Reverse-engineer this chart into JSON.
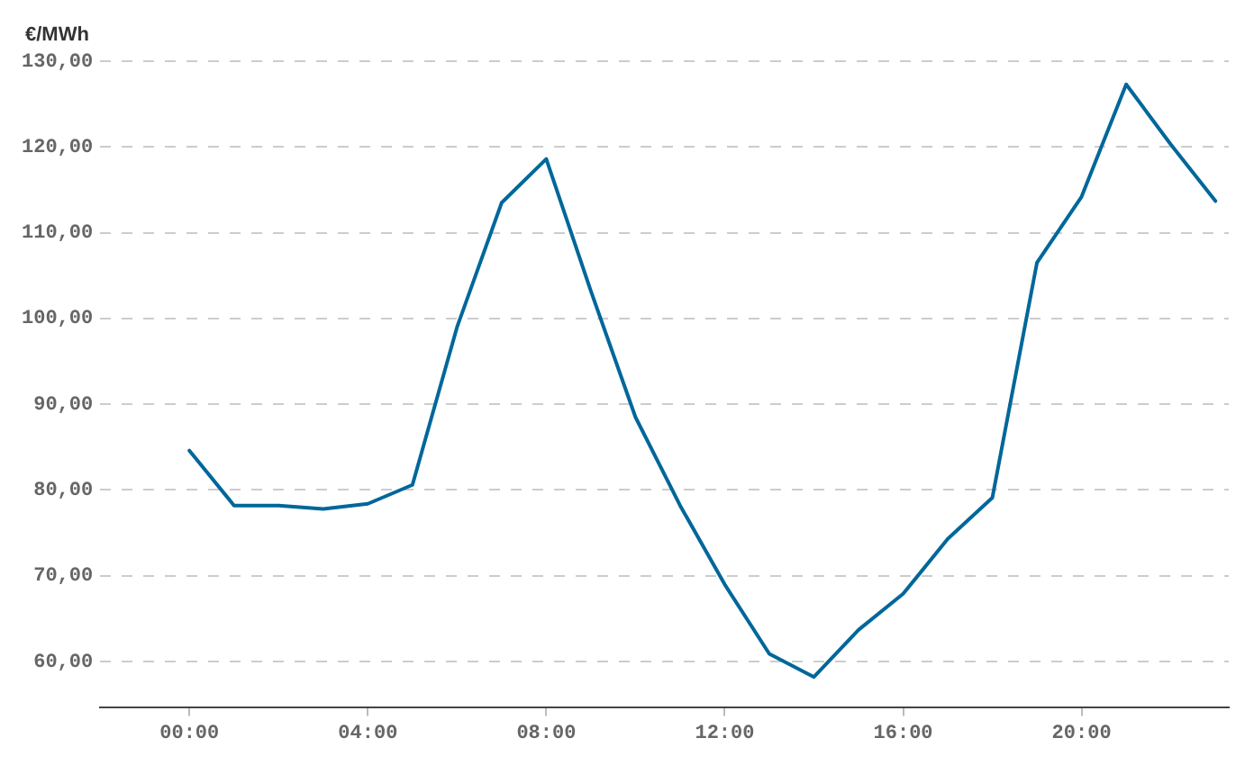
{
  "chart_data": {
    "type": "line",
    "ylabel": "€/MWh",
    "x": [
      0,
      1,
      2,
      3,
      4,
      5,
      6,
      7,
      8,
      9,
      10,
      11,
      12,
      13,
      14,
      15,
      16,
      17,
      18,
      19,
      20,
      21,
      22,
      23
    ],
    "series": [
      {
        "color": "#00679a",
        "values": [
          84.6,
          78.2,
          78.2,
          77.8,
          78.4,
          80.6,
          99.0,
          113.5,
          118.6,
          103.2,
          88.5,
          78.2,
          69.0,
          60.9,
          58.2,
          63.7,
          67.9,
          74.3,
          79.1,
          106.5,
          114.2,
          127.3,
          120.3,
          113.7
        ]
      }
    ],
    "xlim": [
      -2,
      23.3
    ],
    "xticks": [
      {
        "value": 0,
        "label": "00:00"
      },
      {
        "value": 4,
        "label": "04:00"
      },
      {
        "value": 8,
        "label": "08:00"
      },
      {
        "value": 12,
        "label": "12:00"
      },
      {
        "value": 16,
        "label": "16:00"
      },
      {
        "value": 20,
        "label": "20:00"
      }
    ],
    "ylim": [
      54.7,
      130
    ],
    "yticks": [
      {
        "value": 60,
        "label": "60,00"
      },
      {
        "value": 70,
        "label": "70,00"
      },
      {
        "value": 80,
        "label": "80,00"
      },
      {
        "value": 90,
        "label": "90,00"
      },
      {
        "value": 100,
        "label": "100,00"
      },
      {
        "value": 110,
        "label": "110,00"
      },
      {
        "value": 120,
        "label": "120,00"
      },
      {
        "value": 130,
        "label": "130,00"
      }
    ],
    "grid": "y",
    "legend": false,
    "marker": "none",
    "line_style": "solid"
  }
}
